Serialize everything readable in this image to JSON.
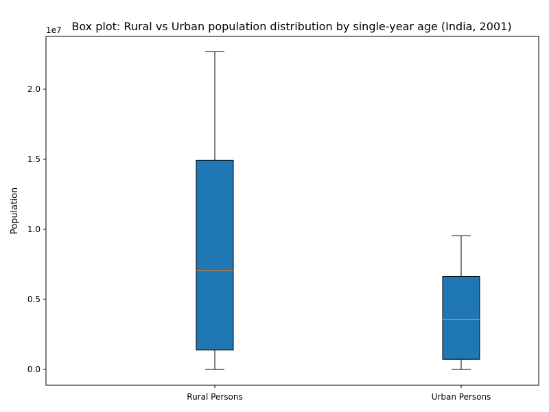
{
  "chart_data": {
    "type": "boxplot",
    "title": "Box plot: Rural vs Urban population distribution by single-year age (India, 2001)",
    "xlabel": "",
    "ylabel": "Population",
    "offset_label": "1e7",
    "ylim": [
      -1130000,
      23770000
    ],
    "yticks": [
      0,
      5000000,
      10000000,
      15000000,
      20000000
    ],
    "ytick_labels": [
      "0.0",
      "0.5",
      "1.0",
      "1.5",
      "2.0"
    ],
    "categories": [
      "Rural Persons",
      "Urban Persons"
    ],
    "boxes": [
      {
        "name": "Rural Persons",
        "whisker_low": 0,
        "q1": 1380000,
        "median": 7080000,
        "q3": 14930000,
        "whisker_high": 22680000
      },
      {
        "name": "Urban Persons",
        "whisker_low": 0,
        "q1": 720000,
        "median": 3560000,
        "q3": 6640000,
        "whisker_high": 9530000
      }
    ],
    "colors": {
      "box_fill": "#1f77b4",
      "median": "#ff7f0e",
      "edge": "#000000"
    }
  }
}
